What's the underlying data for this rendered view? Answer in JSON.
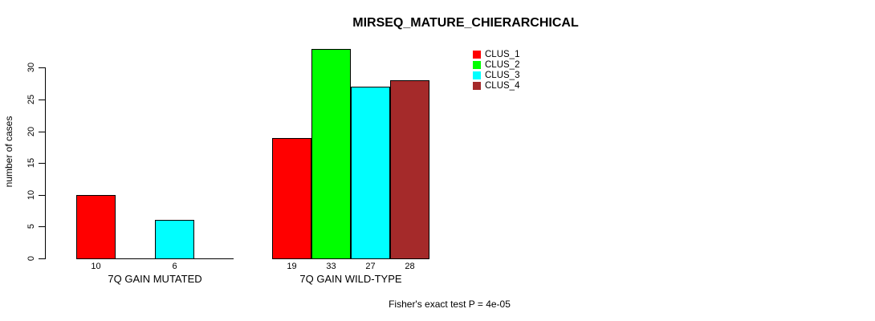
{
  "chart": {
    "title": "MIRSEQ_MATURE_CHIERARCHICAL",
    "ylabel": "number of cases",
    "annotation": "Fisher's exact test P = 4e-05"
  },
  "chart_data": {
    "type": "bar",
    "title": "MIRSEQ_MATURE_CHIERARCHICAL",
    "xlabel": "",
    "ylabel": "number of cases",
    "categories": [
      "7Q GAIN MUTATED",
      "7Q GAIN WILD-TYPE"
    ],
    "series": [
      {
        "name": "CLUS_1",
        "color": "#ff0000",
        "values": [
          10,
          19
        ]
      },
      {
        "name": "CLUS_2",
        "color": "#00ff00",
        "values": [
          0,
          33
        ]
      },
      {
        "name": "CLUS_3",
        "color": "#00ffff",
        "values": [
          6,
          27
        ]
      },
      {
        "name": "CLUS_4",
        "color": "#a52a2a",
        "values": [
          0,
          28
        ]
      }
    ],
    "bar_value_labels": [
      [
        "10",
        "",
        "6",
        ""
      ],
      [
        "19",
        "33",
        "27",
        "28"
      ]
    ],
    "yticks": [
      0,
      5,
      10,
      15,
      20,
      25,
      30
    ],
    "ylim": [
      0,
      33.6
    ],
    "grid": false,
    "legend_position": "top-right",
    "legend_entries": [
      "CLUS_1",
      "CLUS_2",
      "CLUS_3",
      "CLUS_4"
    ],
    "annotation": "Fisher's exact test P = 4e-05",
    "colors": {
      "CLUS_1": "#ff0000",
      "CLUS_2": "#00ff00",
      "CLUS_3": "#00ffff",
      "CLUS_4": "#a52a2a",
      "axis": "#000000",
      "background": "#ffffff"
    }
  }
}
